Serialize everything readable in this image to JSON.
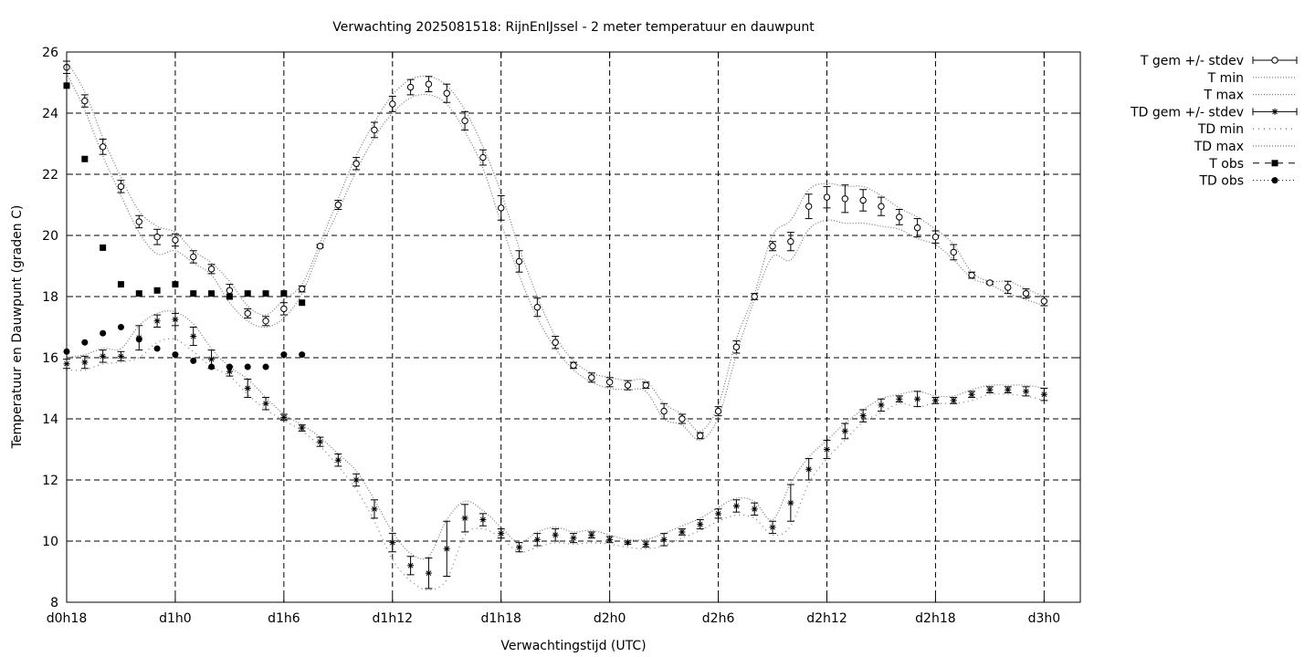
{
  "chart_data": {
    "type": "line",
    "title": "Verwachting 2025081518: RijnEnIJssel - 2 meter temperatuur en dauwpunt",
    "xlabel": "Verwachtingstijd (UTC)",
    "ylabel": "Temperatuur en Dauwpunt (graden C)",
    "xlim": [
      18,
      74
    ],
    "ylim": [
      8,
      26
    ],
    "x_unit": "hours since d0h0",
    "x_ticks": [
      {
        "label": "d0h18",
        "value": 18
      },
      {
        "label": "d1h0",
        "value": 24
      },
      {
        "label": "d1h6",
        "value": 30
      },
      {
        "label": "d1h12",
        "value": 36
      },
      {
        "label": "d1h18",
        "value": 42
      },
      {
        "label": "d2h0",
        "value": 48
      },
      {
        "label": "d2h6",
        "value": 54
      },
      {
        "label": "d2h12",
        "value": 60
      },
      {
        "label": "d2h18",
        "value": 66
      },
      {
        "label": "d3h0",
        "value": 72
      }
    ],
    "y_ticks": [
      8,
      10,
      12,
      14,
      16,
      18,
      20,
      22,
      24,
      26
    ],
    "grid": true,
    "legend_position": "outside-top-right",
    "legend": [
      {
        "label": "T gem +/- stdev",
        "style": "errorbar-circle"
      },
      {
        "label": "T min",
        "style": "dotted"
      },
      {
        "label": "T max",
        "style": "dotted"
      },
      {
        "label": "TD gem +/- stdev",
        "style": "errorbar-star"
      },
      {
        "label": "TD min",
        "style": "dotted-sparse"
      },
      {
        "label": "TD max",
        "style": "dotted"
      },
      {
        "label": "T obs",
        "style": "square-dashed"
      },
      {
        "label": "TD obs",
        "style": "circle-dotted"
      }
    ],
    "series": [
      {
        "name": "T gem +/- stdev",
        "x": [
          18,
          19,
          20,
          21,
          22,
          23,
          24,
          25,
          26,
          27,
          28,
          29,
          30,
          31,
          32,
          33,
          34,
          35,
          36,
          37,
          38,
          39,
          40,
          41,
          42,
          43,
          44,
          45,
          46,
          47,
          48,
          49,
          50,
          51,
          52,
          53,
          54,
          55,
          56,
          57,
          58,
          59,
          60,
          61,
          62,
          63,
          64,
          65,
          66,
          67,
          68,
          69,
          70,
          71,
          72
        ],
        "y": [
          25.5,
          24.4,
          22.9,
          21.6,
          20.45,
          19.95,
          19.85,
          19.3,
          18.9,
          18.2,
          17.45,
          17.2,
          17.6,
          18.25,
          19.65,
          21.0,
          22.35,
          23.45,
          24.3,
          24.85,
          24.95,
          24.65,
          23.75,
          22.55,
          20.9,
          19.15,
          17.65,
          16.5,
          15.75,
          15.35,
          15.2,
          15.1,
          15.1,
          14.25,
          14.0,
          13.45,
          14.25,
          16.35,
          18.0,
          19.65,
          19.8,
          20.95,
          21.25,
          21.2,
          21.15,
          20.95,
          20.6,
          20.25,
          19.95,
          19.45,
          18.7,
          18.45,
          18.3,
          18.1,
          17.85
        ],
        "stdev": [
          0.2,
          0.2,
          0.25,
          0.2,
          0.2,
          0.25,
          0.2,
          0.2,
          0.15,
          0.2,
          0.15,
          0.15,
          0.2,
          0.1,
          0.05,
          0.15,
          0.2,
          0.25,
          0.25,
          0.25,
          0.25,
          0.3,
          0.3,
          0.25,
          0.4,
          0.35,
          0.3,
          0.2,
          0.1,
          0.15,
          0.15,
          0.15,
          0.1,
          0.25,
          0.15,
          0.1,
          0.15,
          0.2,
          0.1,
          0.15,
          0.3,
          0.4,
          0.35,
          0.45,
          0.35,
          0.3,
          0.25,
          0.3,
          0.2,
          0.25,
          0.1,
          0.05,
          0.2,
          0.15,
          0.15
        ]
      },
      {
        "name": "T min",
        "x": [
          18,
          19,
          20,
          21,
          22,
          23,
          24,
          25,
          26,
          27,
          28,
          29,
          30,
          31,
          32,
          33,
          34,
          35,
          36,
          37,
          38,
          39,
          40,
          41,
          42,
          43,
          44,
          45,
          46,
          47,
          48,
          49,
          50,
          51,
          52,
          53,
          54,
          55,
          56,
          57,
          58,
          59,
          60,
          61,
          62,
          63,
          64,
          65,
          66,
          67,
          68,
          69,
          70,
          71,
          72
        ],
        "y": [
          25.3,
          24.1,
          22.6,
          21.3,
          20.1,
          19.4,
          19.5,
          19.1,
          18.7,
          17.8,
          17.2,
          17.0,
          17.3,
          18.1,
          19.55,
          20.8,
          22.1,
          23.2,
          24.0,
          24.5,
          24.6,
          24.3,
          23.4,
          22.2,
          20.4,
          18.7,
          17.3,
          16.3,
          15.6,
          15.2,
          15.0,
          14.95,
          14.9,
          14.0,
          13.8,
          13.3,
          14.05,
          16.1,
          17.9,
          19.3,
          19.2,
          20.2,
          20.5,
          20.4,
          20.4,
          20.3,
          20.2,
          19.9,
          19.7,
          19.2,
          18.6,
          18.4,
          18.1,
          17.9,
          17.7
        ]
      },
      {
        "name": "T max",
        "x": [
          18,
          19,
          20,
          21,
          22,
          23,
          24,
          25,
          26,
          27,
          28,
          29,
          30,
          31,
          32,
          33,
          34,
          35,
          36,
          37,
          38,
          39,
          40,
          41,
          42,
          43,
          44,
          45,
          46,
          47,
          48,
          49,
          50,
          51,
          52,
          53,
          54,
          55,
          56,
          57,
          58,
          59,
          60,
          61,
          62,
          63,
          64,
          65,
          66,
          67,
          68,
          69,
          70,
          71,
          72
        ],
        "y": [
          25.7,
          24.7,
          23.2,
          21.9,
          20.8,
          20.3,
          20.1,
          19.5,
          19.1,
          18.5,
          17.7,
          17.4,
          17.9,
          18.4,
          19.75,
          21.2,
          22.6,
          23.7,
          24.6,
          25.1,
          25.2,
          24.9,
          24.1,
          22.9,
          21.4,
          19.6,
          18.0,
          16.7,
          15.9,
          15.5,
          15.35,
          15.25,
          15.25,
          14.5,
          14.15,
          13.6,
          14.45,
          16.6,
          18.1,
          20.0,
          20.5,
          21.5,
          21.7,
          21.6,
          21.6,
          21.3,
          20.9,
          20.6,
          20.2,
          19.7,
          18.8,
          18.5,
          18.5,
          18.25,
          18.0
        ]
      },
      {
        "name": "TD gem +/- stdev",
        "x": [
          18,
          19,
          20,
          21,
          22,
          23,
          24,
          25,
          26,
          27,
          28,
          29,
          30,
          31,
          32,
          33,
          34,
          35,
          36,
          37,
          38,
          39,
          40,
          41,
          42,
          43,
          44,
          45,
          46,
          47,
          48,
          49,
          50,
          51,
          52,
          53,
          54,
          55,
          56,
          57,
          58,
          59,
          60,
          61,
          62,
          63,
          64,
          65,
          66,
          67,
          68,
          69,
          70,
          71,
          72
        ],
        "y": [
          15.8,
          15.85,
          16.05,
          16.05,
          16.65,
          17.2,
          17.25,
          16.7,
          15.95,
          15.55,
          15.0,
          14.5,
          14.05,
          13.7,
          13.25,
          12.65,
          12.0,
          11.05,
          9.95,
          9.2,
          8.95,
          9.75,
          10.75,
          10.7,
          10.25,
          9.8,
          10.05,
          10.2,
          10.1,
          10.2,
          10.05,
          9.95,
          9.9,
          10.05,
          10.3,
          10.55,
          10.9,
          11.15,
          11.05,
          10.45,
          11.25,
          12.35,
          13.0,
          13.6,
          14.1,
          14.45,
          14.65,
          14.65,
          14.6,
          14.6,
          14.8,
          14.95,
          14.95,
          14.9,
          14.8
        ],
        "stdev": [
          0.15,
          0.2,
          0.2,
          0.15,
          0.4,
          0.2,
          0.2,
          0.3,
          0.3,
          0.15,
          0.3,
          0.2,
          0.1,
          0.1,
          0.15,
          0.2,
          0.2,
          0.3,
          0.3,
          0.3,
          0.5,
          0.9,
          0.45,
          0.2,
          0.15,
          0.15,
          0.2,
          0.2,
          0.15,
          0.1,
          0.1,
          0.05,
          0.1,
          0.2,
          0.1,
          0.15,
          0.15,
          0.2,
          0.2,
          0.2,
          0.6,
          0.35,
          0.3,
          0.25,
          0.2,
          0.2,
          0.1,
          0.25,
          0.1,
          0.1,
          0.1,
          0.1,
          0.1,
          0.15,
          0.2
        ]
      },
      {
        "name": "TD min",
        "x": [
          18,
          19,
          20,
          21,
          22,
          23,
          24,
          25,
          26,
          27,
          28,
          29,
          30,
          31,
          32,
          33,
          34,
          35,
          36,
          37,
          38,
          39,
          40,
          41,
          42,
          43,
          44,
          45,
          46,
          47,
          48,
          49,
          50,
          51,
          52,
          53,
          54,
          55,
          56,
          57,
          58,
          59,
          60,
          61,
          62,
          63,
          64,
          65,
          66,
          67,
          68,
          69,
          70,
          71,
          72
        ],
        "y": [
          15.6,
          15.6,
          15.8,
          15.85,
          16.0,
          16.5,
          16.6,
          16.2,
          15.7,
          15.4,
          14.8,
          14.3,
          13.95,
          13.6,
          13.1,
          12.45,
          11.7,
          10.65,
          9.4,
          8.7,
          8.4,
          8.75,
          10.2,
          10.4,
          10.1,
          9.65,
          9.8,
          9.95,
          9.9,
          9.95,
          9.9,
          9.8,
          9.75,
          9.85,
          10.1,
          10.35,
          10.65,
          10.85,
          10.75,
          10.2,
          10.5,
          11.9,
          12.7,
          13.3,
          13.9,
          14.2,
          14.5,
          14.4,
          14.5,
          14.5,
          14.6,
          14.8,
          14.8,
          14.75,
          14.6
        ]
      },
      {
        "name": "TD max",
        "x": [
          18,
          19,
          20,
          21,
          22,
          23,
          24,
          25,
          26,
          27,
          28,
          29,
          30,
          31,
          32,
          33,
          34,
          35,
          36,
          37,
          38,
          39,
          40,
          41,
          42,
          43,
          44,
          45,
          46,
          47,
          48,
          49,
          50,
          51,
          52,
          53,
          54,
          55,
          56,
          57,
          58,
          59,
          60,
          61,
          62,
          63,
          64,
          65,
          66,
          67,
          68,
          69,
          70,
          71,
          72
        ],
        "y": [
          16.0,
          16.1,
          16.3,
          16.3,
          17.05,
          17.45,
          17.5,
          17.1,
          16.3,
          15.7,
          15.3,
          14.7,
          14.15,
          13.8,
          13.4,
          12.85,
          12.3,
          11.35,
          10.3,
          9.6,
          9.5,
          10.7,
          11.3,
          11.0,
          10.45,
          9.95,
          10.3,
          10.45,
          10.3,
          10.35,
          10.2,
          10.05,
          10.05,
          10.25,
          10.5,
          10.75,
          11.1,
          11.4,
          11.3,
          10.7,
          11.9,
          12.75,
          13.3,
          13.85,
          14.3,
          14.65,
          14.8,
          14.9,
          14.75,
          14.75,
          14.95,
          15.1,
          15.1,
          15.1,
          15.0
        ]
      },
      {
        "name": "T obs",
        "x": [
          18,
          19,
          20,
          21,
          22,
          23,
          24,
          25,
          26,
          27,
          28,
          29,
          30,
          31
        ],
        "y": [
          24.9,
          22.5,
          19.6,
          18.4,
          18.1,
          18.2,
          18.4,
          18.1,
          18.1,
          18.0,
          18.1,
          18.1,
          18.1,
          17.8
        ]
      },
      {
        "name": "TD obs",
        "x": [
          18,
          19,
          20,
          21,
          22,
          23,
          24,
          25,
          26,
          27,
          28,
          29,
          30,
          31
        ],
        "y": [
          16.2,
          16.5,
          16.8,
          17.0,
          16.6,
          16.3,
          16.1,
          15.9,
          15.7,
          15.7,
          15.7,
          15.7,
          16.1,
          16.1
        ]
      }
    ]
  }
}
